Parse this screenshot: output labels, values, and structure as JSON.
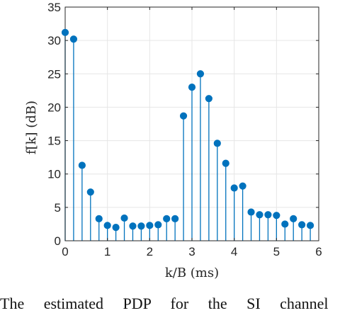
{
  "chart_data": {
    "type": "stem",
    "xlabel": "k/B (ms)",
    "ylabel": "f[k] (dB)",
    "xlim": [
      0,
      6
    ],
    "ylim": [
      0,
      35
    ],
    "xticks": [
      0,
      1,
      2,
      3,
      4,
      5,
      6
    ],
    "yticks": [
      0,
      5,
      10,
      15,
      20,
      25,
      30,
      35
    ],
    "grid": true,
    "x": [
      0,
      0.2,
      0.4,
      0.6,
      0.8,
      1.0,
      1.2,
      1.4,
      1.6,
      1.8,
      2.0,
      2.2,
      2.4,
      2.6,
      2.8,
      3.0,
      3.2,
      3.4,
      3.6,
      3.8,
      4.0,
      4.2,
      4.4,
      4.6,
      4.8,
      5.0,
      5.2,
      5.4,
      5.6,
      5.8
    ],
    "values": [
      31.2,
      30.2,
      11.3,
      7.3,
      3.3,
      2.3,
      2.0,
      3.4,
      2.2,
      2.2,
      2.3,
      2.4,
      3.3,
      3.3,
      18.7,
      23.0,
      25.0,
      21.3,
      14.6,
      11.6,
      7.9,
      8.2,
      4.3,
      3.9,
      3.9,
      3.8,
      2.5,
      3.3,
      2.4,
      2.3
    ]
  },
  "colors": {
    "stem": "#0072bd",
    "grid": "#e6e6e6",
    "axis": "#262626"
  },
  "caption": "The estimated PDP for the SI channel"
}
